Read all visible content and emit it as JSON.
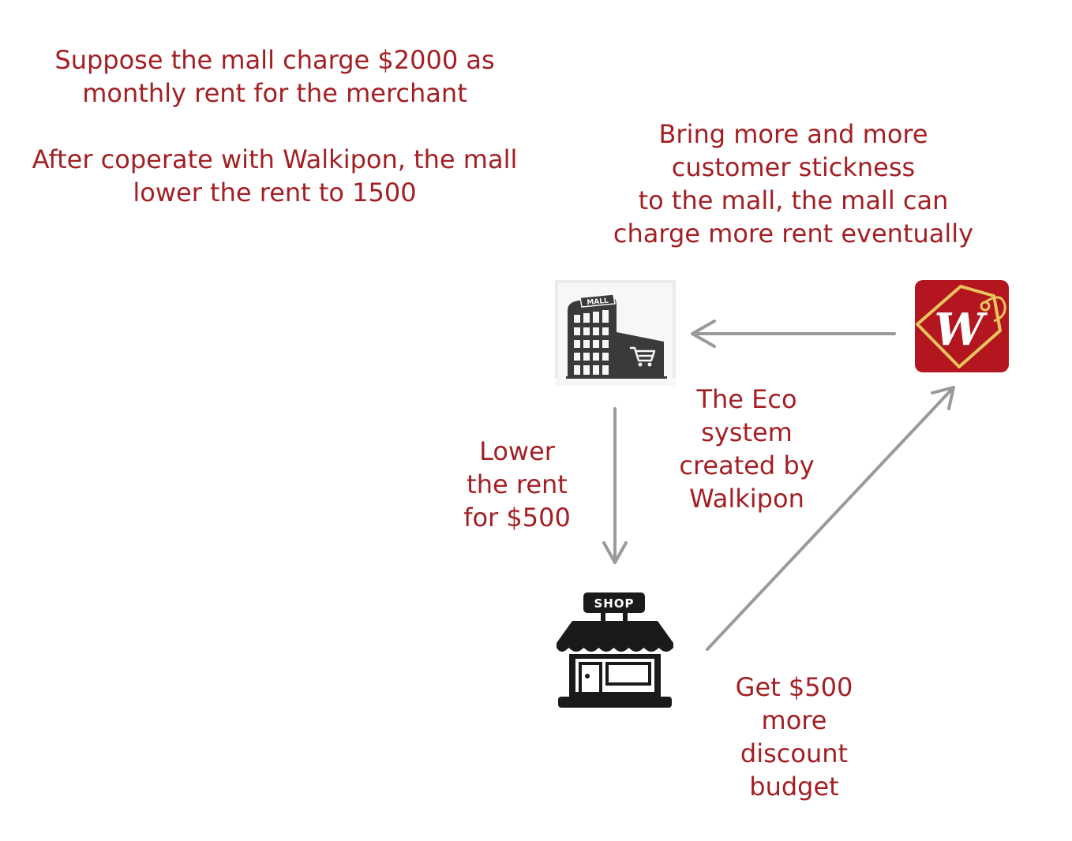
{
  "intro": {
    "line1": "Suppose the mall charge $2000 as",
    "line2": "monthly rent for the merchant",
    "line3": "After coperate with Walkipon, the mall",
    "line4": "lower the rent to 1500"
  },
  "benefit": {
    "line1": "Bring more and more",
    "line2": "customer stickness",
    "line3": "to the mall, the mall can",
    "line4": "charge more rent eventually"
  },
  "eco": {
    "line1": "The Eco",
    "line2": "system",
    "line3": "created by",
    "line4": "Walkipon"
  },
  "lower_rent": {
    "line1": "Lower",
    "line2": "the rent",
    "line3": "for $500"
  },
  "budget": {
    "line1": "Get $500",
    "line2": "more",
    "line3": "discount",
    "line4": "budget"
  },
  "icons": {
    "mall_sign": "MALL",
    "shop_sign": "SHOP",
    "logo_letter": "W",
    "mall_icon": "mall-building-icon",
    "shop_icon": "shop-storefront-icon",
    "logo": "walkipon-tag-logo"
  },
  "colors": {
    "text": "#a31f24",
    "arrow": "#9a9a9a",
    "icon": "#333333",
    "logo_red": "#b3161f",
    "logo_gold": "#e8c45c"
  }
}
